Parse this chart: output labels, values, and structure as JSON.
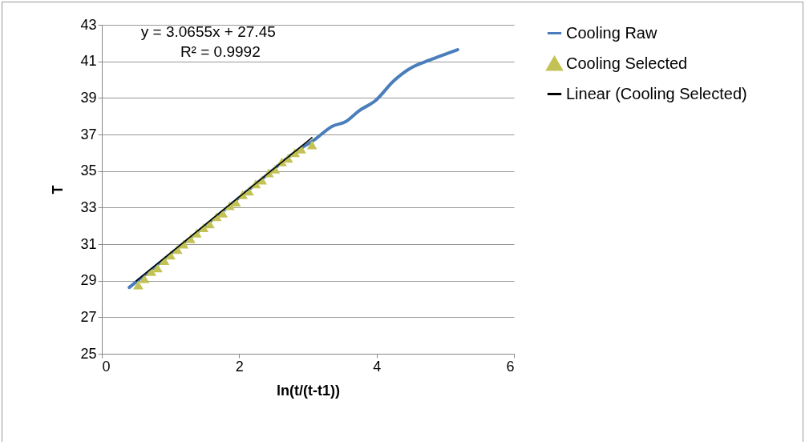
{
  "chart_data": {
    "type": "line",
    "xlabel": "ln(t/(t-t1))",
    "ylabel": "T",
    "annotations": [
      "y = 3.0655x + 27.45",
      "R² = 0.9992"
    ],
    "xlim": [
      0,
      6
    ],
    "xticks": [
      0,
      2,
      4,
      6
    ],
    "ylim": [
      25,
      43
    ],
    "yticks": [
      25,
      27,
      29,
      31,
      33,
      35,
      37,
      39,
      41,
      43
    ],
    "grid": "y",
    "legend": "right",
    "series": [
      {
        "name": "Cooling Raw",
        "type": "line",
        "color": "#4a7ebb",
        "marker": "none",
        "x": [
          0.4,
          0.8,
          1.2,
          1.6,
          2.0,
          2.4,
          2.8,
          3.12,
          3.35,
          3.55,
          3.75,
          3.98,
          4.25,
          4.52,
          4.68,
          4.9,
          5.18
        ],
        "values": [
          28.63,
          29.85,
          31.08,
          32.3,
          33.55,
          34.78,
          36.0,
          36.78,
          37.44,
          37.7,
          38.31,
          38.84,
          39.93,
          40.68,
          40.94,
          41.25,
          41.64
        ]
      },
      {
        "name": "Cooling Selected",
        "type": "scatter",
        "color": "#c2c255",
        "marker": "triangle",
        "x": [
          0.53,
          0.62,
          0.72,
          0.81,
          0.91,
          1.0,
          1.1,
          1.19,
          1.29,
          1.38,
          1.48,
          1.57,
          1.67,
          1.76,
          1.86,
          1.95,
          2.05,
          2.14,
          2.24,
          2.33,
          2.43,
          2.52,
          2.62,
          2.71,
          2.81,
          2.9,
          3.06
        ],
        "values": [
          28.76,
          29.1,
          29.5,
          29.7,
          30.1,
          30.4,
          30.7,
          31.0,
          31.3,
          31.6,
          31.9,
          32.1,
          32.5,
          32.7,
          33.1,
          33.3,
          33.7,
          33.9,
          34.3,
          34.5,
          34.9,
          35.1,
          35.5,
          35.7,
          36.0,
          36.2,
          36.43
        ]
      },
      {
        "name": "Linear (Cooling Selected)",
        "type": "line",
        "color": "#000000",
        "marker": "none",
        "x": [
          0.5,
          3.06
        ],
        "values": [
          28.98,
          36.83
        ]
      }
    ]
  }
}
